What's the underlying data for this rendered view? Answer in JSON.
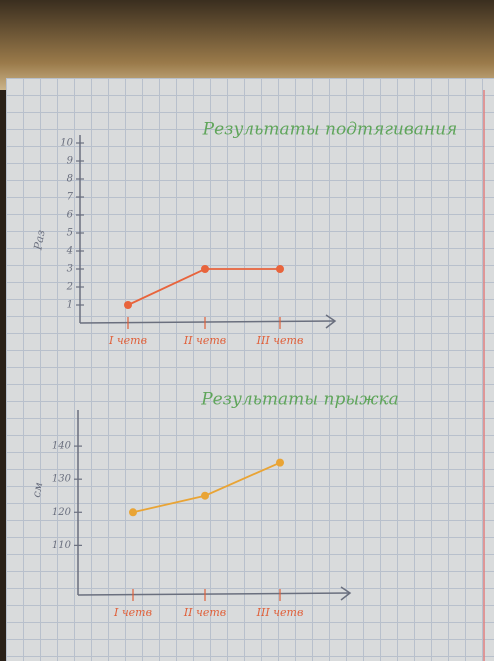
{
  "chart_data": [
    {
      "type": "line",
      "title": "Результаты подтягивания",
      "y_label": "Раз",
      "categories": [
        "I четв",
        "II четв",
        "III четв"
      ],
      "series": [
        {
          "name": "Раз",
          "color": "#e8643c",
          "values": [
            1,
            3,
            3
          ]
        }
      ],
      "ylim": [
        0,
        10
      ],
      "yticks": [
        1,
        2,
        3,
        4,
        5,
        6,
        7,
        8,
        9,
        10
      ]
    },
    {
      "type": "line",
      "title": "Результаты прыжка",
      "y_label": "см",
      "categories": [
        "I четв",
        "II четв",
        "III четв"
      ],
      "series": [
        {
          "name": "см",
          "color": "#e9a435",
          "values": [
            120,
            125,
            135
          ]
        }
      ],
      "ylim": [
        95,
        150
      ],
      "yticks": [
        110,
        120,
        130,
        140
      ]
    }
  ]
}
